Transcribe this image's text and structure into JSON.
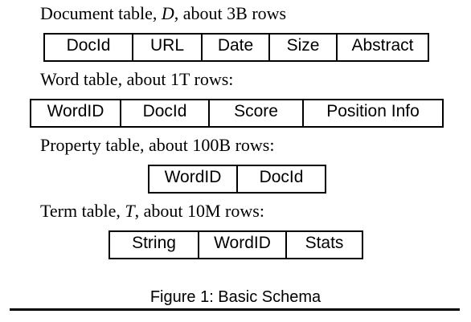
{
  "document_table": {
    "caption_pre": "Document table, ",
    "caption_var": "D",
    "caption_post": ", about 3B rows",
    "columns": [
      "DocId",
      "URL",
      "Date",
      "Size",
      "Abstract"
    ]
  },
  "word_table": {
    "caption": "Word table, about 1T rows:",
    "columns": [
      "WordID",
      "DocId",
      "Score",
      "Position Info"
    ]
  },
  "property_table": {
    "caption": "Property table, about 100B rows:",
    "columns": [
      "WordID",
      "DocId"
    ]
  },
  "term_table": {
    "caption_pre": "Term table, ",
    "caption_var": "T",
    "caption_post": ", about 10M rows:",
    "columns": [
      "String",
      "WordID",
      "Stats"
    ]
  },
  "figure_caption": "Figure 1: Basic Schema"
}
